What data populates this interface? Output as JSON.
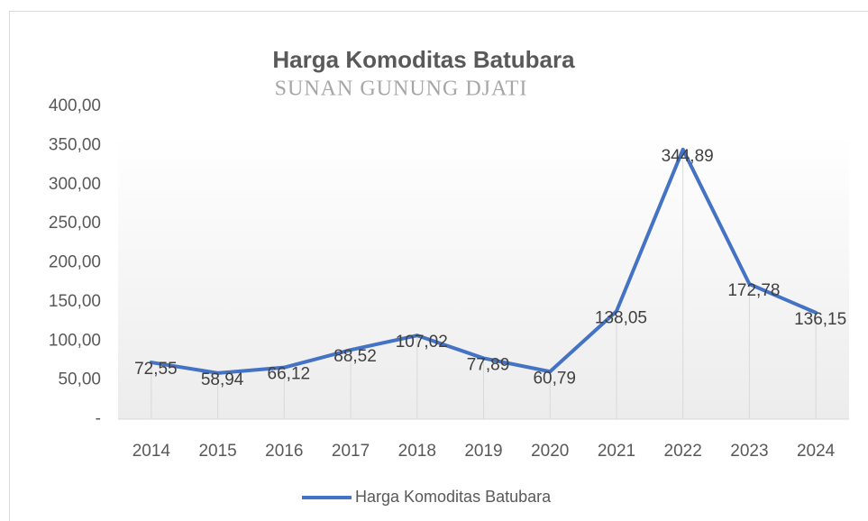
{
  "chart_data": {
    "type": "line",
    "title": "Harga Komoditas Batubara",
    "watermark": "SUNAN GUNUNG DJATI",
    "categories": [
      "2014",
      "2015",
      "2016",
      "2017",
      "2018",
      "2019",
      "2020",
      "2021",
      "2022",
      "2023",
      "2024"
    ],
    "series": [
      {
        "name": "Harga Komoditas Batubara",
        "color": "#4472c4",
        "values": [
          72.55,
          58.94,
          66.12,
          88.52,
          107.02,
          77.89,
          60.79,
          138.05,
          344.89,
          172.78,
          136.15
        ],
        "value_labels": [
          "72,55",
          "58,94",
          "66,12",
          "88,52",
          "107,02",
          "77,89",
          "60,79",
          "138,05",
          "344,89",
          "172,78",
          "136,15"
        ]
      }
    ],
    "ylim": [
      0,
      400
    ],
    "yticks": [
      {
        "value": 0,
        "label": "-"
      },
      {
        "value": 50,
        "label": "50,00"
      },
      {
        "value": 100,
        "label": "100,00"
      },
      {
        "value": 150,
        "label": "150,00"
      },
      {
        "value": 200,
        "label": "200,00"
      },
      {
        "value": 250,
        "label": "250,00"
      },
      {
        "value": 300,
        "label": "300,00"
      },
      {
        "value": 350,
        "label": "350,00"
      },
      {
        "value": 400,
        "label": "400,00"
      }
    ],
    "drop_lines": true,
    "legend": "bottom"
  }
}
